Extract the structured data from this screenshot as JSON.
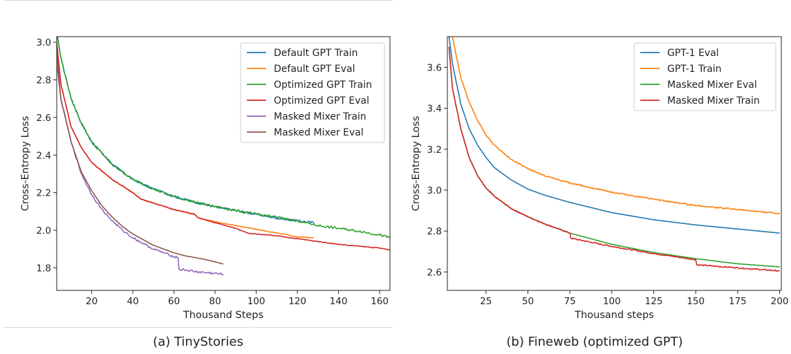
{
  "captions": {
    "left": "(a) TinyStories",
    "right": "(b) Fineweb (optimized GPT)"
  },
  "chart_data": [
    {
      "type": "line",
      "title": "",
      "xlabel": "Thousand Steps",
      "ylabel": "Cross-Entropy Loss",
      "xlim": [
        3,
        165
      ],
      "ylim": [
        1.68,
        3.03
      ],
      "xticks": [
        20,
        40,
        60,
        80,
        100,
        120,
        140,
        160
      ],
      "yticks": [
        1.8,
        2.0,
        2.2,
        2.4,
        2.6,
        2.8,
        3.0
      ],
      "ytick_decimals": 1,
      "grid": false,
      "legend": "top-right",
      "series": [
        {
          "name": "Default GPT Train",
          "color": "#1f77b4",
          "noise": 0.006,
          "x": [
            3,
            5,
            10,
            15,
            20,
            30,
            40,
            50,
            60,
            70,
            80,
            90,
            100,
            110,
            120,
            128
          ],
          "y": [
            3.05,
            2.92,
            2.7,
            2.57,
            2.47,
            2.35,
            2.27,
            2.22,
            2.18,
            2.15,
            2.125,
            2.105,
            2.085,
            2.065,
            2.05,
            2.04
          ]
        },
        {
          "name": "Default GPT Eval",
          "color": "#ff7f0e",
          "noise": 0.002,
          "x": [
            3,
            5,
            10,
            15,
            20,
            30,
            40,
            44,
            50,
            60,
            70,
            72,
            80,
            90,
            100,
            110,
            120,
            128
          ],
          "y": [
            3.0,
            2.78,
            2.55,
            2.44,
            2.36,
            2.27,
            2.2,
            2.165,
            2.145,
            2.11,
            2.085,
            2.065,
            2.045,
            2.025,
            2.005,
            1.985,
            1.965,
            1.96
          ]
        },
        {
          "name": "Optimized GPT Train",
          "color": "#2ca02c",
          "noise": 0.006,
          "x": [
            3,
            5,
            10,
            15,
            20,
            30,
            40,
            50,
            60,
            70,
            80,
            90,
            100,
            110,
            120,
            130,
            140,
            150,
            160,
            165
          ],
          "y": [
            3.05,
            2.92,
            2.7,
            2.57,
            2.47,
            2.35,
            2.27,
            2.22,
            2.18,
            2.15,
            2.125,
            2.105,
            2.085,
            2.07,
            2.05,
            2.025,
            2.01,
            1.995,
            1.975,
            1.96
          ]
        },
        {
          "name": "Optimized GPT Eval",
          "color": "#d62728",
          "noise": 0.002,
          "x": [
            3,
            5,
            10,
            15,
            20,
            30,
            40,
            44,
            50,
            60,
            70,
            72,
            80,
            90,
            96,
            100,
            110,
            120,
            130,
            140,
            150,
            160,
            165
          ],
          "y": [
            3.0,
            2.78,
            2.55,
            2.44,
            2.36,
            2.27,
            2.2,
            2.165,
            2.145,
            2.11,
            2.085,
            2.065,
            2.04,
            2.01,
            1.985,
            1.98,
            1.97,
            1.955,
            1.94,
            1.925,
            1.915,
            1.905,
            1.895
          ]
        },
        {
          "name": "Masked Mixer Train",
          "color": "#9467bd",
          "noise": 0.006,
          "x": [
            3,
            5,
            10,
            15,
            20,
            25,
            30,
            35,
            40,
            45,
            50,
            55,
            60,
            62,
            62.5,
            65,
            70,
            75,
            80,
            84
          ],
          "y": [
            2.88,
            2.7,
            2.47,
            2.3,
            2.19,
            2.11,
            2.05,
            2.0,
            1.96,
            1.93,
            1.9,
            1.88,
            1.86,
            1.855,
            1.79,
            1.79,
            1.78,
            1.775,
            1.77,
            1.765
          ]
        },
        {
          "name": "Masked Mixer Eval",
          "color": "#8c564b",
          "noise": 0.0,
          "x": [
            3,
            5,
            10,
            15,
            20,
            25,
            30,
            35,
            40,
            45,
            50,
            55,
            60,
            65,
            70,
            75,
            80,
            84
          ],
          "y": [
            2.95,
            2.7,
            2.47,
            2.31,
            2.21,
            2.13,
            2.07,
            2.02,
            1.98,
            1.95,
            1.92,
            1.9,
            1.88,
            1.865,
            1.855,
            1.845,
            1.832,
            1.82
          ]
        }
      ]
    },
    {
      "type": "line",
      "title": "",
      "xlabel": "Thousand steps",
      "ylabel": "Cross-Entropy Loss",
      "xlim": [
        2,
        201
      ],
      "ylim": [
        2.51,
        3.75
      ],
      "xticks": [
        25,
        50,
        75,
        100,
        125,
        150,
        175,
        200
      ],
      "yticks": [
        2.6,
        2.8,
        3.0,
        3.2,
        3.4,
        3.6
      ],
      "ytick_decimals": 1,
      "grid": false,
      "legend": "top-right",
      "series": [
        {
          "name": "GPT-1 Eval",
          "color": "#1f77b4",
          "noise": 0.0,
          "x": [
            3,
            5,
            10,
            15,
            20,
            25,
            30,
            40,
            50,
            60,
            75,
            100,
            125,
            150,
            175,
            200
          ],
          "y": [
            3.75,
            3.62,
            3.42,
            3.3,
            3.22,
            3.16,
            3.11,
            3.05,
            3.005,
            2.975,
            2.94,
            2.89,
            2.855,
            2.83,
            2.81,
            2.79
          ]
        },
        {
          "name": "GPT-1 Train",
          "color": "#ff7f0e",
          "noise": 0.003,
          "x": [
            3,
            5,
            10,
            15,
            20,
            25,
            30,
            40,
            50,
            60,
            75,
            100,
            125,
            150,
            175,
            200
          ],
          "y": [
            3.85,
            3.75,
            3.55,
            3.43,
            3.34,
            3.27,
            3.22,
            3.15,
            3.105,
            3.07,
            3.035,
            2.99,
            2.955,
            2.925,
            2.905,
            2.885
          ]
        },
        {
          "name": "Masked Mixer Eval",
          "color": "#2ca02c",
          "noise": 0.0,
          "x": [
            3,
            5,
            10,
            15,
            20,
            25,
            30,
            40,
            50,
            60,
            75,
            100,
            125,
            150,
            175,
            200
          ],
          "y": [
            3.7,
            3.5,
            3.3,
            3.16,
            3.07,
            3.01,
            2.97,
            2.91,
            2.87,
            2.835,
            2.79,
            2.735,
            2.695,
            2.665,
            2.64,
            2.625
          ]
        },
        {
          "name": "Masked Mixer Train",
          "color": "#d62728",
          "noise": 0.003,
          "x": [
            3,
            5,
            10,
            15,
            20,
            25,
            30,
            40,
            50,
            60,
            75,
            75.6,
            100,
            125,
            150,
            150.6,
            175,
            200
          ],
          "y": [
            3.7,
            3.5,
            3.3,
            3.16,
            3.07,
            3.01,
            2.97,
            2.91,
            2.87,
            2.835,
            2.79,
            2.765,
            2.725,
            2.69,
            2.66,
            2.635,
            2.62,
            2.605
          ]
        }
      ]
    }
  ]
}
